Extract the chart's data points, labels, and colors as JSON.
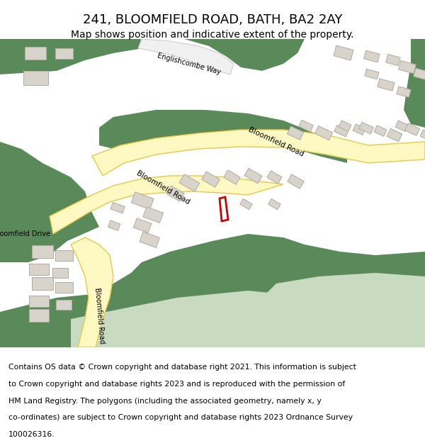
{
  "title": "241, BLOOMFIELD ROAD, BATH, BA2 2AY",
  "subtitle": "Map shows position and indicative extent of the property.",
  "footer": "Contains OS data © Crown copyright and database right 2021. This information is subject to Crown copyright and database rights 2023 and is reproduced with the permission of HM Land Registry. The polygons (including the associated geometry, namely x, y co-ordinates) are subject to Crown copyright and database rights 2023 Ordnance Survey 100026316.",
  "bg_color": "#ffffff",
  "map_bg": "#f5f3ef",
  "green_dark": "#5a8a5a",
  "green_light": "#c8dbc0",
  "road_fill": "#fef9c3",
  "road_stroke": "#e8c84a",
  "building_fill": "#d8d4cc",
  "building_stroke": "#b0aba0",
  "plot_stroke": "#cc0000",
  "plot_fill": "#ffffff",
  "figsize": [
    6.0,
    6.25
  ],
  "dpi": 100
}
